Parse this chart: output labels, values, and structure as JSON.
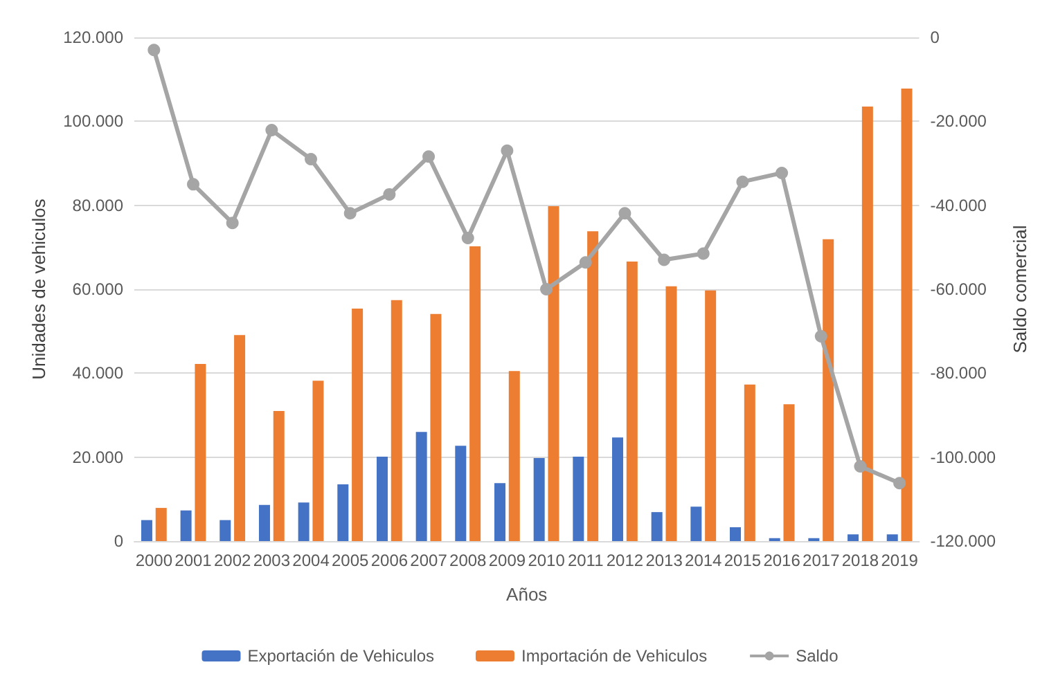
{
  "chart_data": {
    "type": "bar",
    "xlabel": "Años",
    "ylabel": "Unidades de vehiculos",
    "y2label": "Saldo comercial",
    "categories": [
      "2000",
      "2001",
      "2002",
      "2003",
      "2004",
      "2005",
      "2006",
      "2007",
      "2008",
      "2009",
      "2010",
      "2011",
      "2012",
      "2013",
      "2014",
      "2015",
      "2016",
      "2017",
      "2018",
      "2019"
    ],
    "series": [
      {
        "name": "Exportación de Vehiculos",
        "color": "#4472c4",
        "values": [
          5000,
          7300,
          5000,
          8600,
          9200,
          13500,
          20100,
          26000,
          22700,
          13800,
          19800,
          20100,
          24700,
          6900,
          8200,
          3300,
          700,
          700,
          1600,
          1600
        ]
      },
      {
        "name": "Importación de Vehiculos",
        "color": "#ed7d31",
        "values": [
          7900,
          42200,
          49100,
          31000,
          38200,
          55400,
          57400,
          54100,
          70200,
          40500,
          79800,
          73800,
          66600,
          60700,
          59700,
          37300,
          32600,
          71900,
          103500,
          107800
        ]
      },
      {
        "name": "Saldo",
        "type": "line",
        "axis": "y2",
        "color": "#a5a5a5",
        "marker": "circle",
        "values": [
          -3000,
          -35000,
          -44200,
          -22100,
          -29000,
          -41900,
          -37400,
          -28400,
          -47800,
          -27000,
          -60000,
          -53600,
          -41900,
          -53000,
          -51500,
          -34400,
          -32300,
          -71200,
          -102200,
          -106200
        ]
      }
    ],
    "ylim": [
      0,
      120000
    ],
    "yticks": [
      {
        "value": 0,
        "label": "0"
      },
      {
        "value": 20000,
        "label": "20.000"
      },
      {
        "value": 40000,
        "label": "40.000"
      },
      {
        "value": 60000,
        "label": "60.000"
      },
      {
        "value": 80000,
        "label": "80.000"
      },
      {
        "value": 100000,
        "label": "100.000"
      },
      {
        "value": 120000,
        "label": "120.000"
      }
    ],
    "y2lim": [
      -120000,
      0
    ],
    "y2ticks": [
      {
        "value": -120000,
        "label": "-120.000"
      },
      {
        "value": -100000,
        "label": "-100.000"
      },
      {
        "value": -80000,
        "label": "-80.000"
      },
      {
        "value": -60000,
        "label": "-60.000"
      },
      {
        "value": -40000,
        "label": "-40.000"
      },
      {
        "value": -20000,
        "label": "-20.000"
      },
      {
        "value": 0,
        "label": "0"
      }
    ],
    "grid": "y",
    "legend": "bottom"
  }
}
